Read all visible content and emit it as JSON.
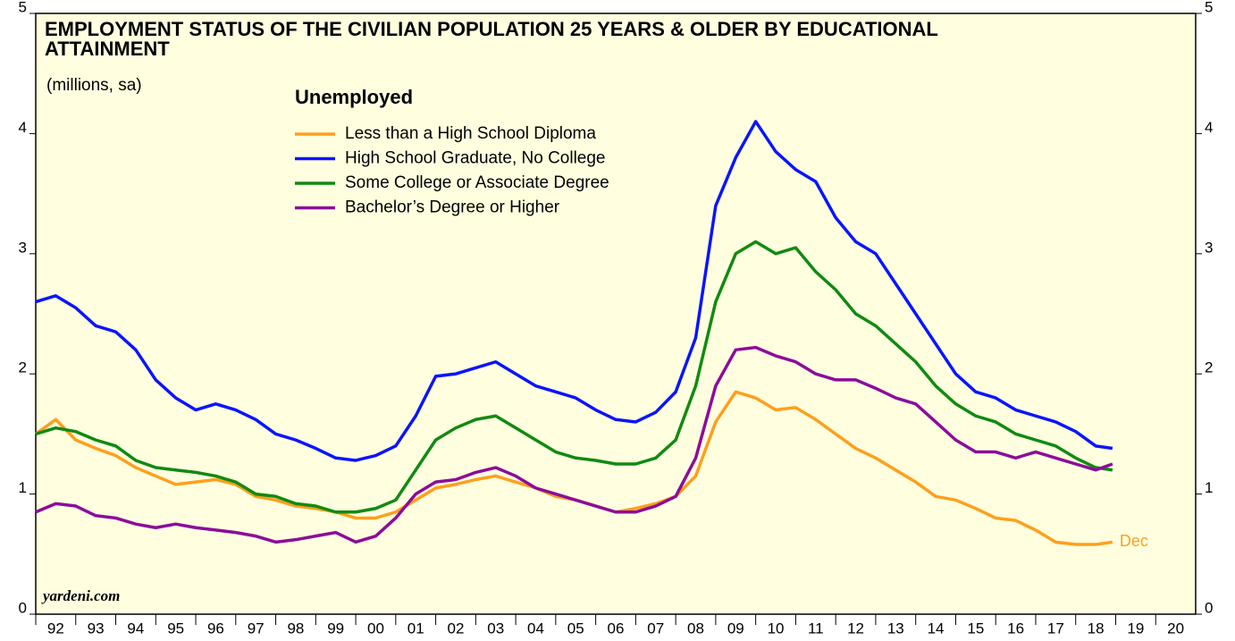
{
  "chart_data": {
    "type": "line",
    "title": "EMPLOYMENT STATUS OF THE CIVILIAN POPULATION 25 YEARS & OLDER BY EDUCATIONAL ATTAINMENT",
    "subtitle": "(millions, sa)",
    "legend_title": "Unemployed",
    "source": "yardeni.com",
    "annotation": "Dec",
    "x": [
      1992,
      1992.5,
      1993,
      1993.5,
      1994,
      1994.5,
      1995,
      1995.5,
      1996,
      1996.5,
      1997,
      1997.5,
      1998,
      1998.5,
      1999,
      1999.5,
      2000,
      2000.5,
      2001,
      2001.5,
      2002,
      2002.5,
      2003,
      2003.5,
      2004,
      2004.5,
      2005,
      2005.5,
      2006,
      2006.5,
      2007,
      2007.5,
      2008,
      2008.5,
      2009,
      2009.5,
      2010,
      2010.5,
      2011,
      2011.5,
      2012,
      2012.5,
      2013,
      2013.5,
      2014,
      2014.5,
      2015,
      2015.5,
      2016,
      2016.5,
      2017,
      2017.5,
      2018,
      2018.5,
      2018.92
    ],
    "series": [
      {
        "name": "Less than a High School Diploma",
        "color": "#ff9f1c",
        "values": [
          1.5,
          1.62,
          1.45,
          1.38,
          1.32,
          1.22,
          1.15,
          1.08,
          1.1,
          1.12,
          1.08,
          0.98,
          0.95,
          0.9,
          0.88,
          0.85,
          0.8,
          0.8,
          0.85,
          0.95,
          1.05,
          1.08,
          1.12,
          1.15,
          1.1,
          1.05,
          0.98,
          0.95,
          0.9,
          0.85,
          0.88,
          0.92,
          0.98,
          1.15,
          1.6,
          1.85,
          1.8,
          1.7,
          1.72,
          1.62,
          1.5,
          1.38,
          1.3,
          1.2,
          1.1,
          0.98,
          0.95,
          0.88,
          0.8,
          0.78,
          0.7,
          0.6,
          0.58,
          0.58,
          0.6
        ]
      },
      {
        "name": "High School Graduate, No College",
        "color": "#0a14ff",
        "values": [
          2.6,
          2.65,
          2.55,
          2.4,
          2.35,
          2.2,
          1.95,
          1.8,
          1.7,
          1.75,
          1.7,
          1.62,
          1.5,
          1.45,
          1.38,
          1.3,
          1.28,
          1.32,
          1.4,
          1.65,
          1.98,
          2.0,
          2.05,
          2.1,
          2.0,
          1.9,
          1.85,
          1.8,
          1.7,
          1.62,
          1.6,
          1.68,
          1.85,
          2.3,
          3.4,
          3.8,
          4.1,
          3.85,
          3.7,
          3.6,
          3.3,
          3.1,
          3.0,
          2.75,
          2.5,
          2.25,
          2.0,
          1.85,
          1.8,
          1.7,
          1.65,
          1.6,
          1.52,
          1.4,
          1.38
        ]
      },
      {
        "name": "Some College or Associate Degree",
        "color": "#118a11",
        "values": [
          1.5,
          1.55,
          1.52,
          1.45,
          1.4,
          1.28,
          1.22,
          1.2,
          1.18,
          1.15,
          1.1,
          1.0,
          0.98,
          0.92,
          0.9,
          0.85,
          0.85,
          0.88,
          0.95,
          1.2,
          1.45,
          1.55,
          1.62,
          1.65,
          1.55,
          1.45,
          1.35,
          1.3,
          1.28,
          1.25,
          1.25,
          1.3,
          1.45,
          1.9,
          2.6,
          3.0,
          3.1,
          3.0,
          3.05,
          2.85,
          2.7,
          2.5,
          2.4,
          2.25,
          2.1,
          1.9,
          1.75,
          1.65,
          1.6,
          1.5,
          1.45,
          1.4,
          1.3,
          1.22,
          1.2
        ]
      },
      {
        "name": "Bachelor’s Degree or Higher",
        "color": "#8b0d9b",
        "values": [
          0.85,
          0.92,
          0.9,
          0.82,
          0.8,
          0.75,
          0.72,
          0.75,
          0.72,
          0.7,
          0.68,
          0.65,
          0.6,
          0.62,
          0.65,
          0.68,
          0.6,
          0.65,
          0.8,
          1.0,
          1.1,
          1.12,
          1.18,
          1.22,
          1.15,
          1.05,
          1.0,
          0.95,
          0.9,
          0.85,
          0.85,
          0.9,
          0.98,
          1.3,
          1.9,
          2.2,
          2.22,
          2.15,
          2.1,
          2.0,
          1.95,
          1.95,
          1.88,
          1.8,
          1.75,
          1.6,
          1.45,
          1.35,
          1.35,
          1.3,
          1.35,
          1.3,
          1.25,
          1.2,
          1.25
        ]
      }
    ],
    "xlim": [
      1992,
      2021
    ],
    "xticks": [
      {
        "value": 1992,
        "label": "92"
      },
      {
        "value": 1993,
        "label": "93"
      },
      {
        "value": 1994,
        "label": "94"
      },
      {
        "value": 1995,
        "label": "95"
      },
      {
        "value": 1996,
        "label": "96"
      },
      {
        "value": 1997,
        "label": "97"
      },
      {
        "value": 1998,
        "label": "98"
      },
      {
        "value": 1999,
        "label": "99"
      },
      {
        "value": 2000,
        "label": "00"
      },
      {
        "value": 2001,
        "label": "01"
      },
      {
        "value": 2002,
        "label": "02"
      },
      {
        "value": 2003,
        "label": "03"
      },
      {
        "value": 2004,
        "label": "04"
      },
      {
        "value": 2005,
        "label": "05"
      },
      {
        "value": 2006,
        "label": "06"
      },
      {
        "value": 2007,
        "label": "07"
      },
      {
        "value": 2008,
        "label": "08"
      },
      {
        "value": 2009,
        "label": "09"
      },
      {
        "value": 2010,
        "label": "10"
      },
      {
        "value": 2011,
        "label": "11"
      },
      {
        "value": 2012,
        "label": "12"
      },
      {
        "value": 2013,
        "label": "13"
      },
      {
        "value": 2014,
        "label": "14"
      },
      {
        "value": 2015,
        "label": "15"
      },
      {
        "value": 2016,
        "label": "16"
      },
      {
        "value": 2017,
        "label": "17"
      },
      {
        "value": 2018,
        "label": "18"
      },
      {
        "value": 2019,
        "label": "19"
      },
      {
        "value": 2020,
        "label": "20"
      }
    ],
    "ylim": [
      0,
      5
    ],
    "yticks": [
      0,
      1,
      2,
      3,
      4,
      5
    ],
    "grid": false
  }
}
